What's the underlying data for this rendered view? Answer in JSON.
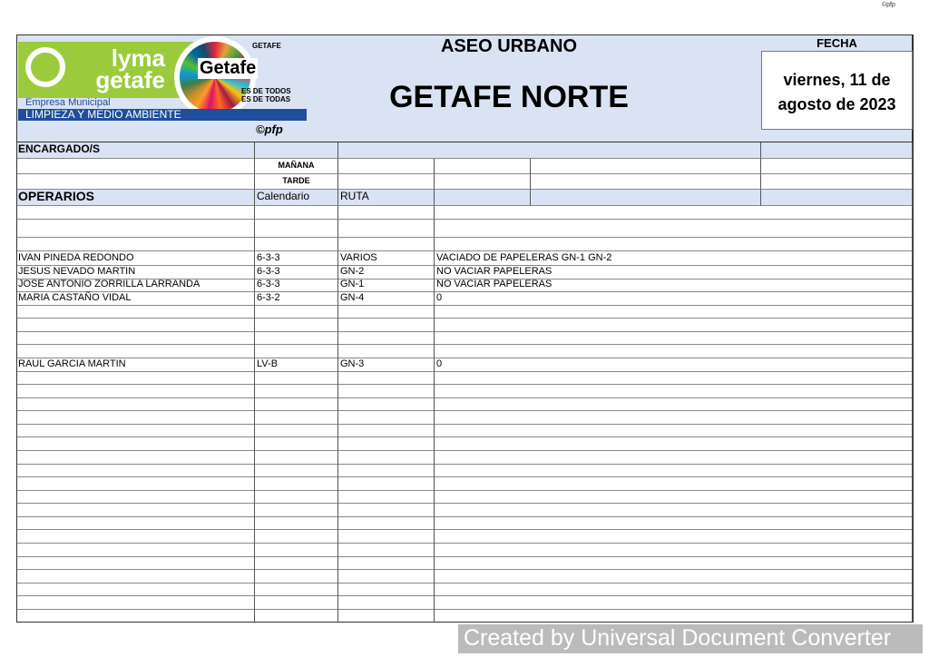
{
  "corner_mark": "©pfp",
  "logo": {
    "brand": "lyma getafe",
    "sub1": "Empresa Municipal",
    "sub2": "LIMPIEZA Y MEDIO AMBIENTE",
    "getafe": "Getafe",
    "ayto": "GETAFE",
    "motto1": "ES DE TODOS",
    "motto2": "ES DE TODAS"
  },
  "pfp": "©pfp",
  "title": "ASEO URBANO",
  "subtitle": "GETAFE NORTE",
  "fecha_label": "FECHA",
  "fecha": "viernes, 11 de agosto de 2023",
  "encargados_label": "ENCARGADO/S",
  "manana_label": "MAÑANA",
  "tarde_label": "TARDE",
  "operarios_label": "OPERARIOS",
  "col_calendario": "Calendario",
  "col_ruta": "RUTA",
  "rows": [
    {
      "name": "IVAN PINEDA REDONDO",
      "cal": "6-3-3",
      "ruta": "VARIOS",
      "obs": "VACIADO DE PAPELERAS GN-1 GN-2"
    },
    {
      "name": "JESUS NEVADO MARTIN",
      "cal": "6-3-3",
      "ruta": "GN-2",
      "obs": "NO VACIAR PAPELERAS"
    },
    {
      "name": "JOSE ANTONIO ZORRILLA LARRANDA",
      "cal": "6-3-3",
      "ruta": "GN-1",
      "obs": "NO VACIAR PAPELERAS"
    },
    {
      "name": "MARIA CASTAÑO VIDAL",
      "cal": "6-3-2",
      "ruta": "GN-4",
      "obs": "0"
    },
    {
      "name": "",
      "cal": "",
      "ruta": "",
      "obs": ""
    },
    {
      "name": "",
      "cal": "",
      "ruta": "",
      "obs": ""
    },
    {
      "name": "",
      "cal": "",
      "ruta": "",
      "obs": ""
    },
    {
      "name": "",
      "cal": "",
      "ruta": "",
      "obs": ""
    },
    {
      "name": "RAUL GARCIA MARTIN",
      "cal": "LV-B",
      "ruta": "GN-3",
      "obs": "0"
    }
  ],
  "watermark": "Created by Universal Document Converter"
}
